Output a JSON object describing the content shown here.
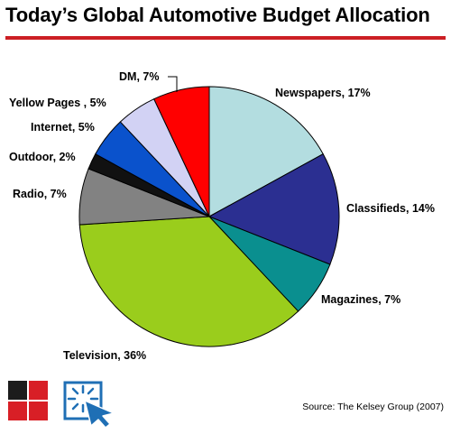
{
  "header": {
    "title": "Today’s Global Automotive Budget Allocation"
  },
  "footer": {
    "source": "Source: The Kelsey Group (2007)"
  },
  "icons": {
    "logo_left": "red-black-squares-logo-icon",
    "logo_right": "cursor-click-icon"
  },
  "colors": {
    "title_rule": "#cc1f24",
    "logo_red": "#d81f26"
  },
  "chart_data": {
    "type": "pie",
    "title": "Today’s Global Automotive Budget Allocation",
    "start": "12 o'clock, clockwise",
    "slices": [
      {
        "label": "Newspapers, 17%",
        "value": 17,
        "color": "#b3dde0"
      },
      {
        "label": "Classifieds, 14%",
        "value": 14,
        "color": "#2b2f91"
      },
      {
        "label": "Magazines, 7%",
        "value": 7,
        "color": "#0a8f8f"
      },
      {
        "label": "Television, 36%",
        "value": 36,
        "color": "#9acd1c"
      },
      {
        "label": "Radio, 7%",
        "value": 7,
        "color": "#828282"
      },
      {
        "label": "Outdoor, 2%",
        "value": 2,
        "color": "#111111"
      },
      {
        "label": "Internet, 5%",
        "value": 5,
        "color": "#0a52cc"
      },
      {
        "label": "Yellow Pages , 5%",
        "value": 5,
        "color": "#d2d2f4"
      },
      {
        "label": "DM, 7%",
        "value": 7,
        "color": "#ff0000"
      }
    ]
  }
}
